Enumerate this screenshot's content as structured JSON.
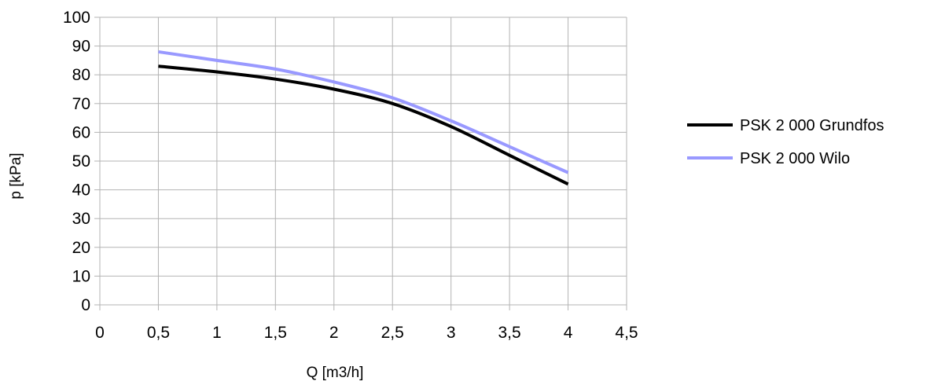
{
  "chart_data": {
    "type": "line",
    "title": "",
    "xlabel": "Q [m3/h]",
    "ylabel": "p [kPa]",
    "xlim": [
      0,
      4.5
    ],
    "ylim": [
      0,
      100
    ],
    "x_ticks": [
      0,
      0.5,
      1,
      1.5,
      2,
      2.5,
      3,
      3.5,
      4,
      4.5
    ],
    "x_tick_labels": [
      "0",
      "0,5",
      "1",
      "1,5",
      "2",
      "2,5",
      "3",
      "3,5",
      "4",
      "4,5"
    ],
    "y_ticks": [
      0,
      10,
      20,
      30,
      40,
      50,
      60,
      70,
      80,
      90,
      100
    ],
    "y_tick_labels": [
      "0",
      "10",
      "20",
      "30",
      "40",
      "50",
      "60",
      "70",
      "80",
      "90",
      "100"
    ],
    "grid": true,
    "legend_position": "right",
    "series": [
      {
        "name": "PSK 2 000 Grundfos",
        "color": "#000000",
        "x": [
          0.5,
          1,
          1.5,
          2,
          2.5,
          3,
          3.5,
          4
        ],
        "y": [
          83,
          81,
          78.5,
          75,
          70,
          62,
          52,
          42
        ]
      },
      {
        "name": "PSK 2 000 Wilo",
        "color": "#9999ff",
        "x": [
          0.5,
          1,
          1.5,
          2,
          2.5,
          3,
          3.5,
          4
        ],
        "y": [
          88,
          85,
          82,
          77.5,
          72,
          64,
          55,
          46
        ]
      }
    ]
  }
}
